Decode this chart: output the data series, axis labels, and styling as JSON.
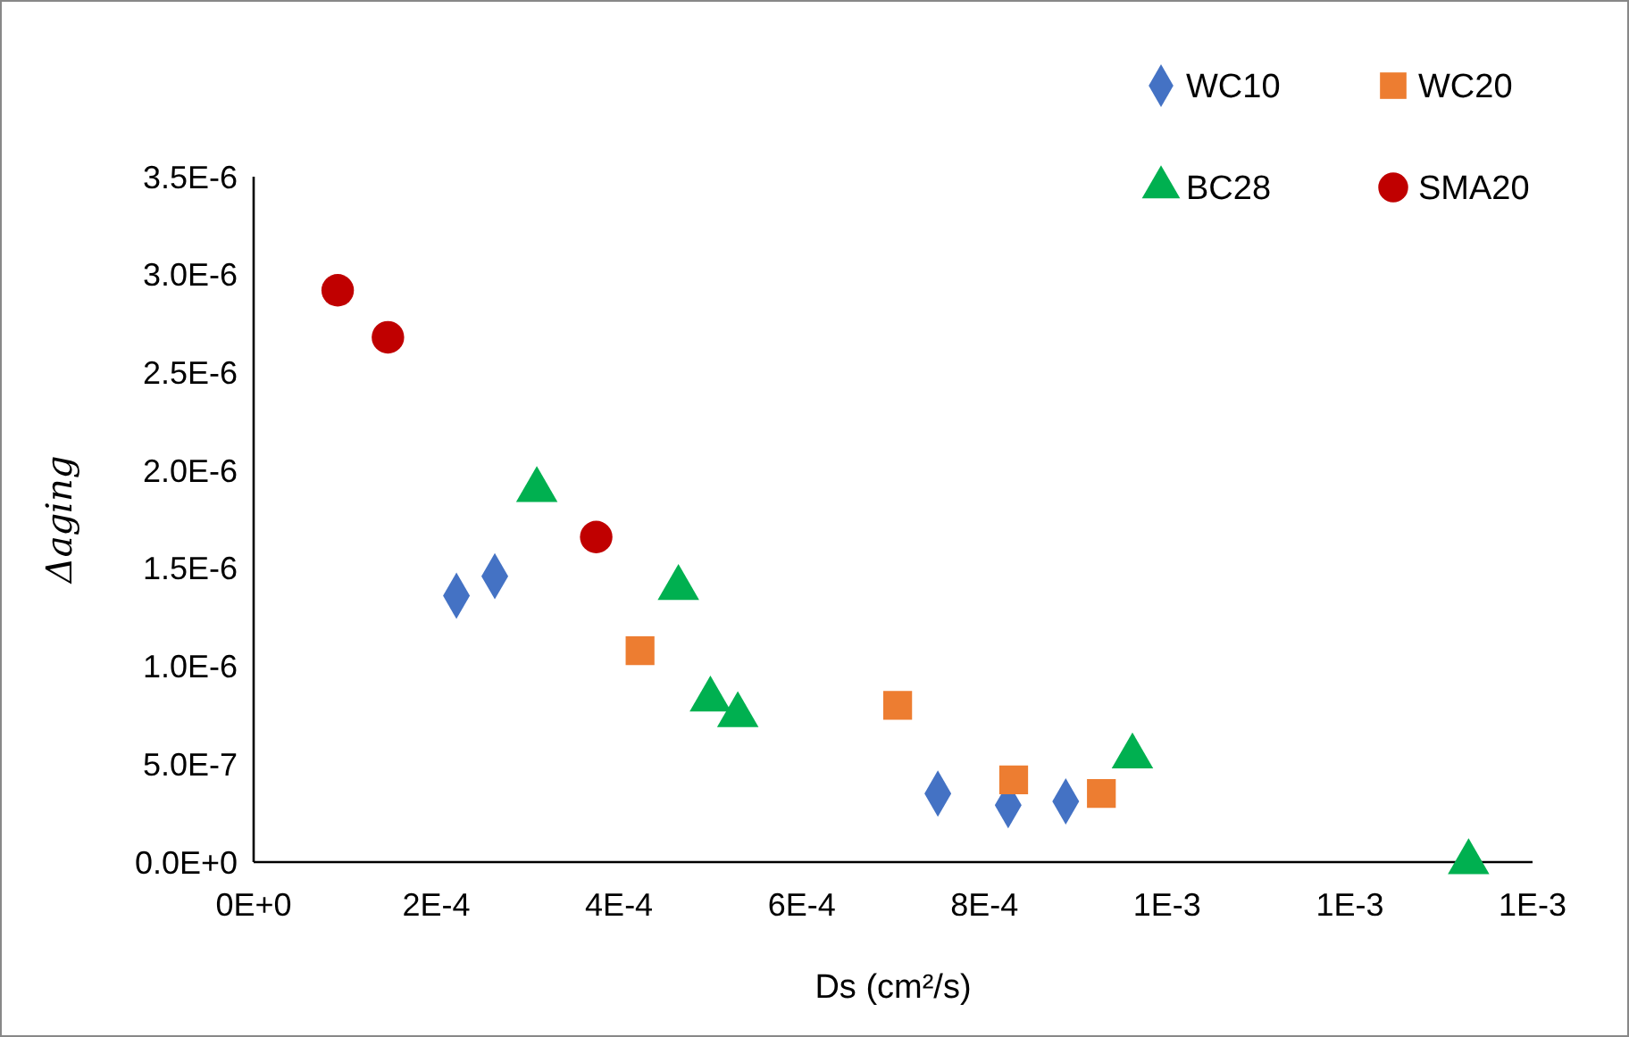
{
  "chart_data": {
    "type": "scatter",
    "xlabel": "Ds (cm²/s)",
    "ylabel": "Δaging",
    "xlim": [
      0,
      0.0014
    ],
    "xticks": [
      {
        "value": 0,
        "label": "0E+0"
      },
      {
        "value": 0.0002,
        "label": "2E-4"
      },
      {
        "value": 0.0004,
        "label": "4E-4"
      },
      {
        "value": 0.0006,
        "label": "6E-4"
      },
      {
        "value": 0.0008,
        "label": "8E-4"
      },
      {
        "value": 0.001,
        "label": "1E-3"
      },
      {
        "value": 0.0012,
        "label": "1E-3"
      },
      {
        "value": 0.0014,
        "label": "1E-3"
      }
    ],
    "ylim": [
      0,
      3.5e-06
    ],
    "yticks": [
      {
        "value": 0,
        "label": "0.0E+0"
      },
      {
        "value": 5e-07,
        "label": "5.0E-7"
      },
      {
        "value": 1e-06,
        "label": "1.0E-6"
      },
      {
        "value": 1.5e-06,
        "label": "1.5E-6"
      },
      {
        "value": 2e-06,
        "label": "2.0E-6"
      },
      {
        "value": 2.5e-06,
        "label": "2.5E-6"
      },
      {
        "value": 3e-06,
        "label": "3.0E-6"
      },
      {
        "value": 3.5e-06,
        "label": "3.5E-6"
      }
    ],
    "grid": false,
    "legend": "top right",
    "series": [
      {
        "name": "WC10",
        "color": "#4472c4",
        "marker": "diamond",
        "x": [
          0.000222,
          0.000264,
          0.000749,
          0.000826,
          0.000889
        ],
        "values": [
          1.36e-06,
          1.46e-06,
          3.5e-07,
          2.9e-07,
          3.1e-07
        ]
      },
      {
        "name": "WC20",
        "color": "#ed7d31",
        "marker": "square",
        "x": [
          0.000423,
          0.000705,
          0.000832,
          0.000928
        ],
        "values": [
          1.08e-06,
          8e-07,
          4.2e-07,
          3.5e-07
        ]
      },
      {
        "name": "BC28",
        "color": "#00b050",
        "marker": "triangle",
        "x": [
          0.00031,
          0.000465,
          0.0005,
          0.00053,
          0.000962,
          0.00133
        ],
        "values": [
          1.9e-06,
          1.4e-06,
          8.3e-07,
          7.5e-07,
          5.4e-07,
          0
        ]
      },
      {
        "name": "SMA20",
        "color": "#c00000",
        "marker": "circle",
        "x": [
          9.2e-05,
          0.000147,
          0.000375
        ],
        "values": [
          2.92e-06,
          2.68e-06,
          1.66e-06
        ]
      }
    ]
  }
}
